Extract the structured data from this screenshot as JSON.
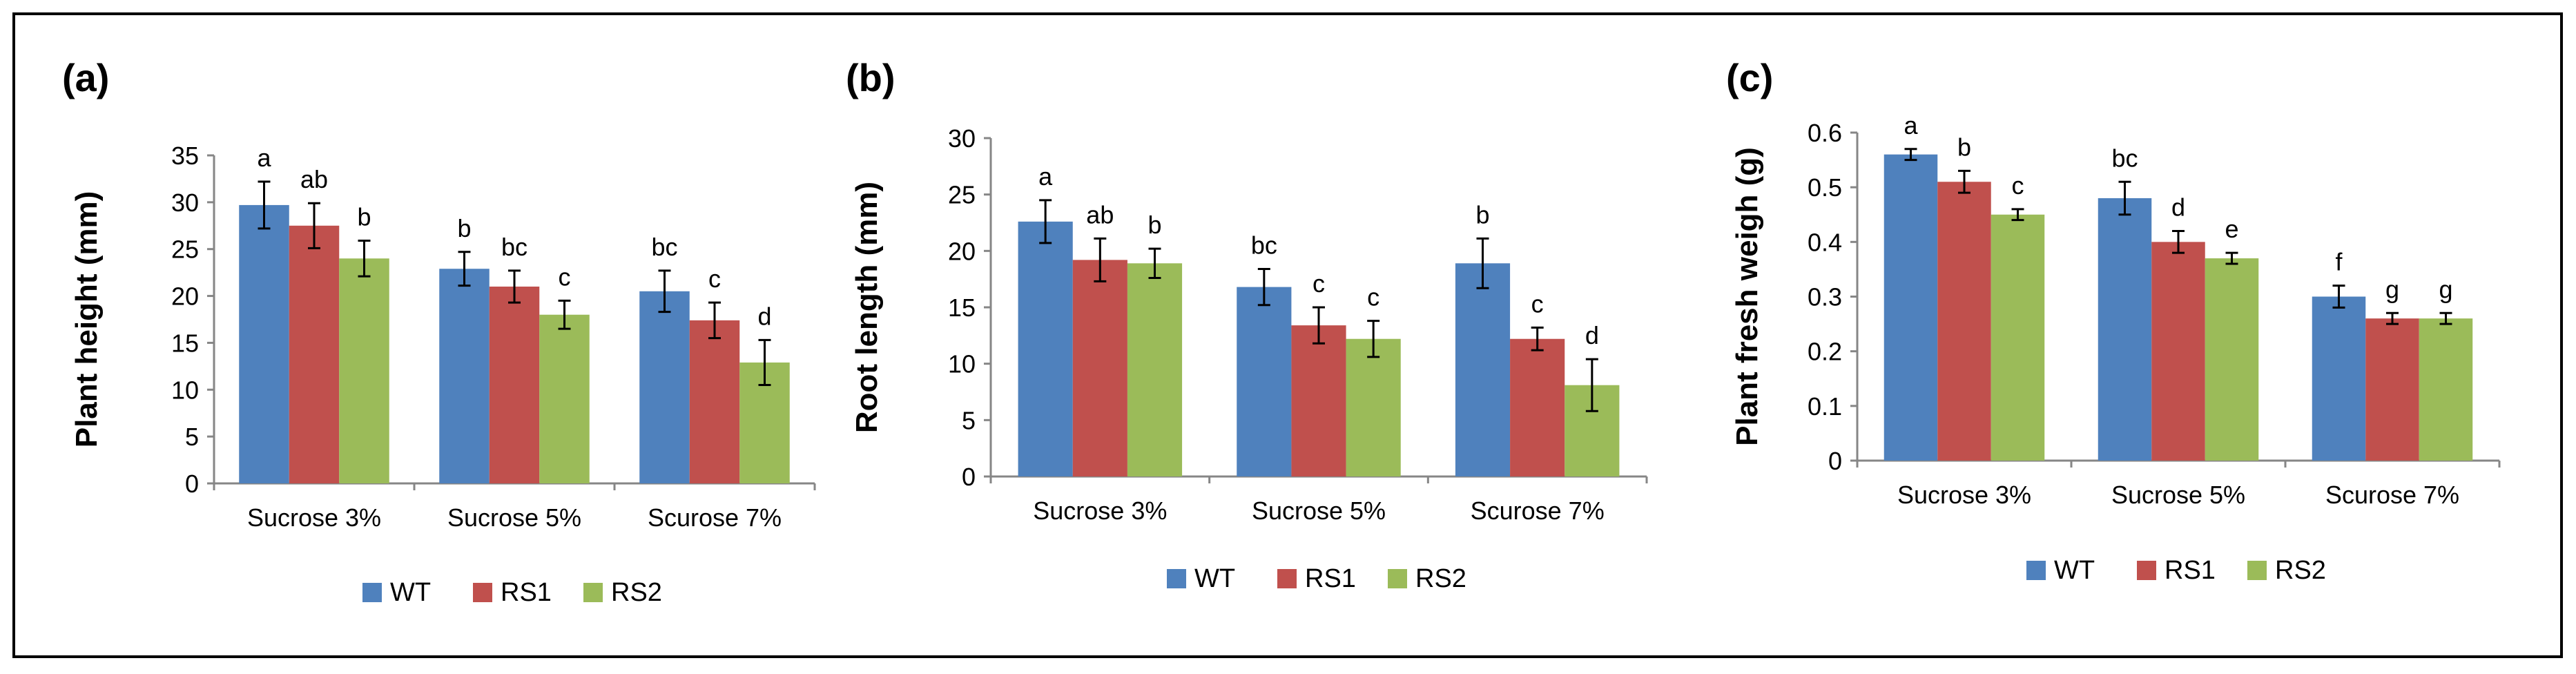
{
  "figure": {
    "series_colors": {
      "WT": "#4f81bd",
      "RS1": "#c0504d",
      "RS2": "#9bbb59"
    }
  },
  "chart_data": [
    {
      "type": "bar",
      "panel_label": "(a)",
      "categories": [
        "Sucrose 3%",
        "Sucrose 5%",
        "Scurose 7%"
      ],
      "ylabel": "Plant height (mm)",
      "ylim": [
        0,
        35
      ],
      "yticks": [
        0,
        5,
        10,
        15,
        20,
        25,
        30,
        35
      ],
      "ytick_labels": [
        "0",
        "5",
        "10",
        "15",
        "20",
        "25",
        "30",
        "35"
      ],
      "series": [
        {
          "name": "WT",
          "color": "#4f81bd",
          "values": [
            29.7,
            22.9,
            20.5
          ],
          "errors": [
            2.5,
            1.8,
            2.2
          ],
          "labels": [
            "a",
            "b",
            "bc"
          ]
        },
        {
          "name": "RS1",
          "color": "#c0504d",
          "values": [
            27.5,
            21.0,
            17.4
          ],
          "errors": [
            2.4,
            1.7,
            1.9
          ],
          "labels": [
            "ab",
            "bc",
            "c"
          ]
        },
        {
          "name": "RS2",
          "color": "#9bbb59",
          "values": [
            24.0,
            18.0,
            12.9
          ],
          "errors": [
            1.9,
            1.5,
            2.4
          ],
          "labels": [
            "b",
            "c",
            "d"
          ]
        }
      ],
      "legend": "bottom"
    },
    {
      "type": "bar",
      "panel_label": "(b)",
      "categories": [
        "Sucrose 3%",
        "Sucrose 5%",
        "Scurose 7%"
      ],
      "ylabel": "Root length (mm)",
      "ylim": [
        0,
        30
      ],
      "yticks": [
        0,
        5,
        10,
        15,
        20,
        25,
        30
      ],
      "ytick_labels": [
        "0",
        "5",
        "10",
        "15",
        "20",
        "25",
        "30"
      ],
      "series": [
        {
          "name": "WT",
          "color": "#4f81bd",
          "values": [
            22.6,
            16.8,
            18.9
          ],
          "errors": [
            1.9,
            1.6,
            2.2
          ],
          "labels": [
            "a",
            "bc",
            "b"
          ]
        },
        {
          "name": "RS1",
          "color": "#c0504d",
          "values": [
            19.2,
            13.4,
            12.2
          ],
          "errors": [
            1.9,
            1.6,
            1.0
          ],
          "labels": [
            "ab",
            "c",
            "c"
          ]
        },
        {
          "name": "RS2",
          "color": "#9bbb59",
          "values": [
            18.9,
            12.2,
            8.1
          ],
          "errors": [
            1.3,
            1.6,
            2.3
          ],
          "labels": [
            "b",
            "c",
            "d"
          ]
        }
      ],
      "legend": "bottom"
    },
    {
      "type": "bar",
      "panel_label": "(c)",
      "categories": [
        "Sucrose 3%",
        "Sucrose 5%",
        "Scurose 7%"
      ],
      "ylabel": "Plant fresh weigh (g)",
      "ylim": [
        0,
        0.6
      ],
      "yticks": [
        0,
        0.1,
        0.2,
        0.3,
        0.4,
        0.5,
        0.6
      ],
      "ytick_labels": [
        "0",
        "0.1",
        "0.2",
        "0.3",
        "0.4",
        "0.5",
        "0.6"
      ],
      "series": [
        {
          "name": "WT",
          "color": "#4f81bd",
          "values": [
            0.56,
            0.48,
            0.3
          ],
          "errors": [
            0.01,
            0.03,
            0.02
          ],
          "labels": [
            "a",
            "bc",
            "f"
          ]
        },
        {
          "name": "RS1",
          "color": "#c0504d",
          "values": [
            0.51,
            0.4,
            0.26
          ],
          "errors": [
            0.02,
            0.02,
            0.01
          ],
          "labels": [
            "b",
            "d",
            "g"
          ]
        },
        {
          "name": "RS2",
          "color": "#9bbb59",
          "values": [
            0.45,
            0.37,
            0.26
          ],
          "errors": [
            0.01,
            0.01,
            0.01
          ],
          "labels": [
            "c",
            "e",
            "g"
          ]
        }
      ],
      "legend": "bottom"
    }
  ]
}
